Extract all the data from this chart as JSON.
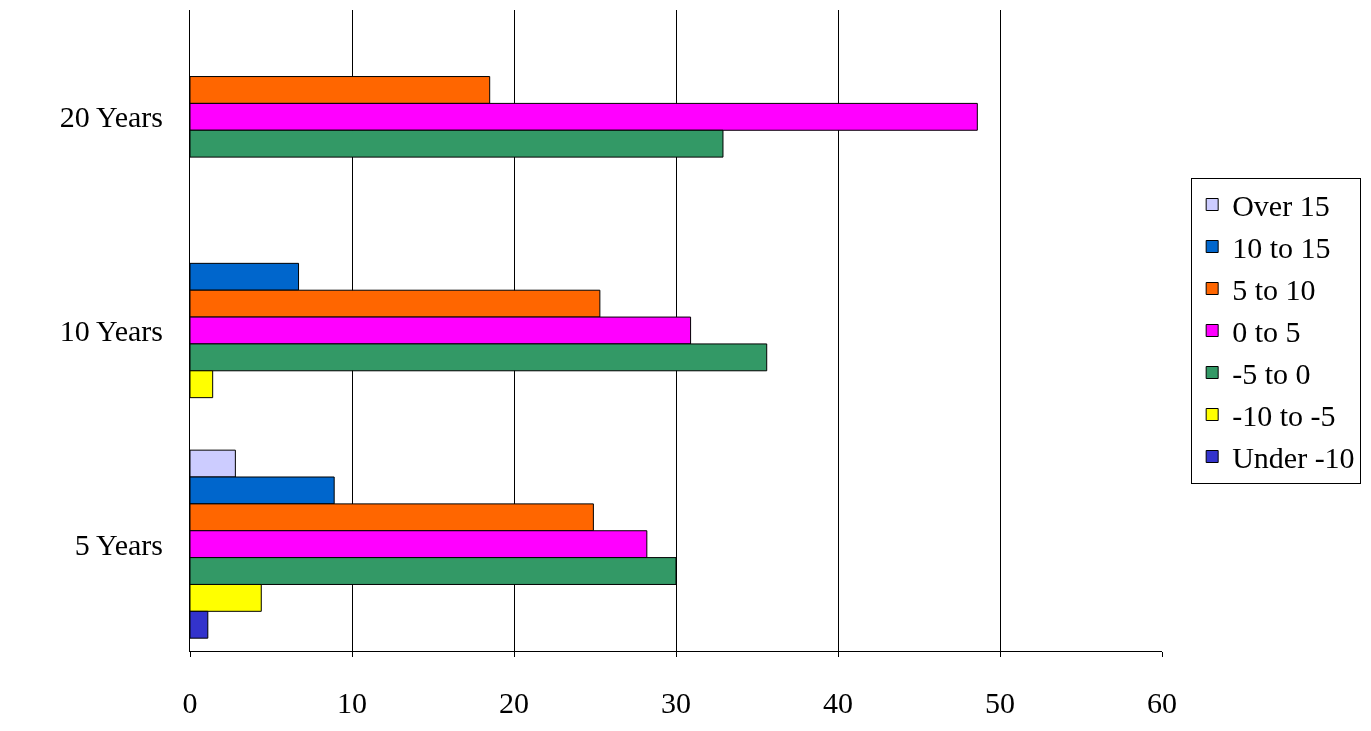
{
  "chart_data": {
    "type": "bar",
    "orientation": "horizontal",
    "categories": [
      "20 Years",
      "10 Years",
      "5 Years"
    ],
    "series": [
      {
        "name": "Over 15",
        "color": "#ccccff",
        "values": [
          null,
          null,
          2.8
        ]
      },
      {
        "name": "10 to 15",
        "color": "#0066cc",
        "values": [
          null,
          6.7,
          8.9
        ]
      },
      {
        "name": "5 to 10",
        "color": "#ff6600",
        "values": [
          18.5,
          25.3,
          24.9
        ]
      },
      {
        "name": "0 to 5",
        "color": "#ff00ff",
        "values": [
          48.6,
          30.9,
          28.2
        ]
      },
      {
        "name": "-5 to 0",
        "color": "#339966",
        "values": [
          32.9,
          35.6,
          30.0
        ]
      },
      {
        "name": "-10 to -5",
        "color": "#ffff00",
        "values": [
          null,
          1.4,
          4.4
        ]
      },
      {
        "name": "Under -10",
        "color": "#3333cc",
        "values": [
          null,
          null,
          1.1
        ]
      }
    ],
    "xlim": [
      0,
      60
    ],
    "xticks": [
      0,
      10,
      20,
      30,
      40,
      50,
      60
    ],
    "grid": "x",
    "legend": "right"
  }
}
